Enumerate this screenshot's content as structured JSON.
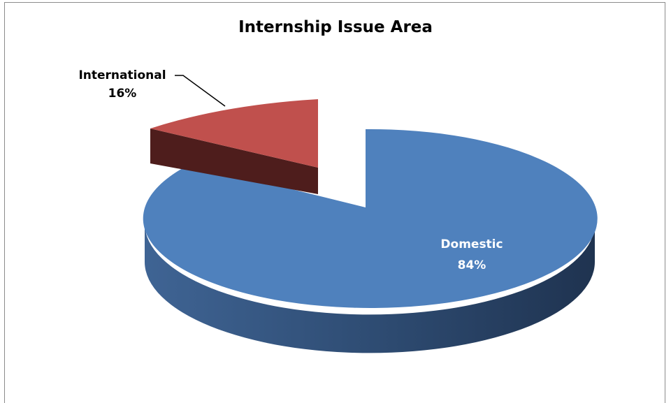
{
  "chart_data": {
    "type": "pie",
    "title": "Internship Issue Area",
    "style": "3d-exploded",
    "slices": [
      {
        "label": "Domestic",
        "value": 84,
        "display": "84%",
        "color": "#4f81bd",
        "label_color": "#ffffff",
        "label_position": "inside"
      },
      {
        "label": "International",
        "value": 16,
        "display": "16%",
        "color": "#c0504d",
        "label_color": "#000000",
        "label_position": "outside"
      }
    ],
    "legend": "none"
  }
}
